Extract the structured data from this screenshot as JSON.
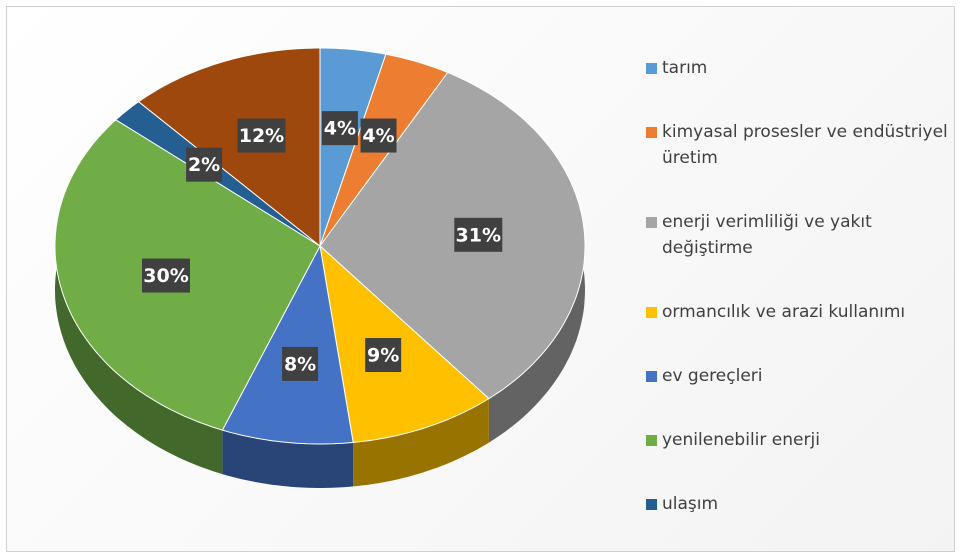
{
  "chart_data": {
    "type": "pie",
    "categories": [
      "tarım",
      "kimyasal prosesler ve endüstriyel üretim",
      "enerji verimliliği ve yakıt değiştirme",
      "ormancılık ve arazi kullanımı",
      "ev gereçleri",
      "yenilenebilir enerji",
      "ulaşım",
      null
    ],
    "values": [
      4,
      4,
      31,
      9,
      8,
      30,
      2,
      12
    ],
    "value_labels": [
      "4%",
      "4%",
      "31%",
      "9%",
      "8%",
      "30%",
      "2%",
      "12%"
    ],
    "colors": [
      "#5b9bd5",
      "#ed7d31",
      "#a5a5a5",
      "#ffc000",
      "#4472c4",
      "#70ad47",
      "#255e91",
      "#9e480e"
    ],
    "legend": "right"
  }
}
